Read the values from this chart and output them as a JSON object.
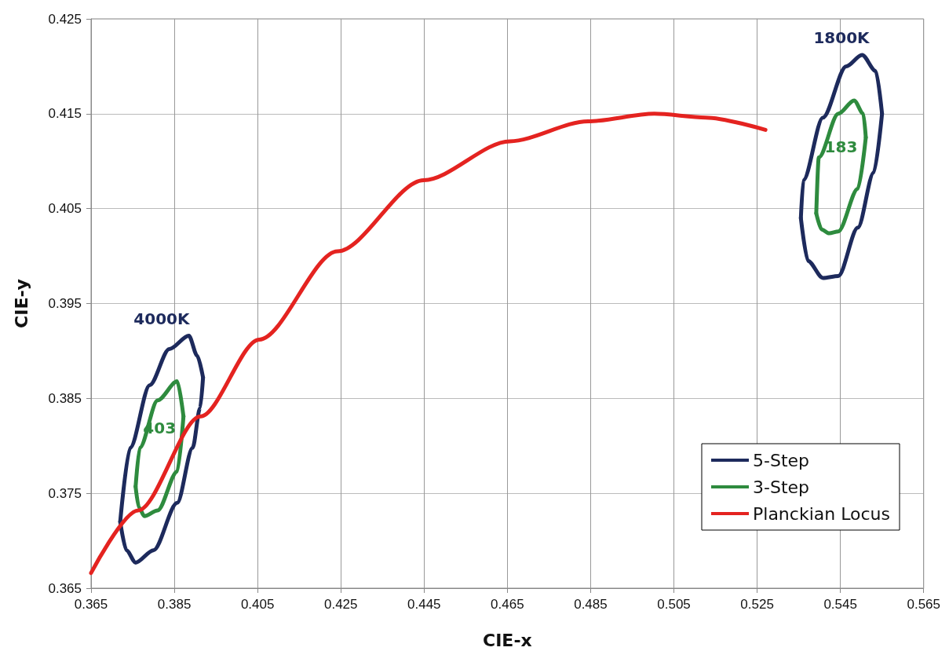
{
  "chart_data": {
    "type": "line",
    "xlabel": "CIE-x",
    "ylabel": "CIE-y",
    "xlim": [
      0.365,
      0.565
    ],
    "xticks": [
      0.365,
      0.385,
      0.405,
      0.425,
      0.445,
      0.465,
      0.485,
      0.505,
      0.525,
      0.545,
      0.565
    ],
    "ylim": [
      0.365,
      0.425
    ],
    "yticks": [
      0.365,
      0.375,
      0.385,
      0.395,
      0.405,
      0.415,
      0.425
    ],
    "grid": true,
    "legend": "bottom right",
    "marker": "none",
    "line_style": "solid",
    "series": [
      {
        "name": "5-Step",
        "color": "#1d2a5c",
        "x": [
          0.372,
          0.3744,
          0.3791,
          0.3838,
          0.3885,
          0.3905,
          0.3919
        ],
        "values": [
          0.372,
          0.3798,
          0.3864,
          0.3902,
          0.3916,
          0.3895,
          0.3872
        ]
      },
      {
        "color": "#1d2a5c",
        "x": [
          0.372,
          0.3735,
          0.3757,
          0.38,
          0.3857,
          0.3894,
          0.3912,
          0.3919
        ],
        "values": [
          0.372,
          0.369,
          0.3677,
          0.369,
          0.374,
          0.3798,
          0.384,
          0.3872
        ]
      },
      {
        "name": "3-Step",
        "color": "#2e8b3e",
        "x": [
          0.3757,
          0.3767,
          0.381,
          0.3857,
          0.3872
        ],
        "values": [
          0.3757,
          0.3798,
          0.3848,
          0.3868,
          0.3831
        ]
      },
      {
        "color": "#2e8b3e",
        "x": [
          0.3757,
          0.3765,
          0.3778,
          0.381,
          0.3857,
          0.3872
        ],
        "values": [
          0.3757,
          0.3735,
          0.3726,
          0.3732,
          0.3773,
          0.3831
        ]
      },
      {
        "color": "#1d2a5c",
        "x": [
          0.5355,
          0.5361,
          0.5408,
          0.5464,
          0.5502,
          0.5535,
          0.555
        ],
        "values": [
          0.404,
          0.408,
          0.4146,
          0.42,
          0.4212,
          0.4195,
          0.415
        ]
      },
      {
        "color": "#1d2a5c",
        "x": [
          0.5355,
          0.5372,
          0.5408,
          0.5445,
          0.5492,
          0.553,
          0.555
        ],
        "values": [
          0.404,
          0.3995,
          0.3977,
          0.3979,
          0.403,
          0.4088,
          0.415
        ]
      },
      {
        "color": "#2e8b3e",
        "x": [
          0.5392,
          0.5398,
          0.5445,
          0.5483,
          0.5505,
          0.5511
        ],
        "values": [
          0.4045,
          0.4104,
          0.415,
          0.4164,
          0.415,
          0.4125
        ]
      },
      {
        "color": "#2e8b3e",
        "x": [
          0.5392,
          0.5405,
          0.5423,
          0.5445,
          0.5492,
          0.5511
        ],
        "values": [
          0.4045,
          0.4028,
          0.4024,
          0.4026,
          0.4071,
          0.4125
        ]
      },
      {
        "name": "Planckian Locus",
        "color": "#e42320",
        "x": [
          0.365,
          0.3763,
          0.3913,
          0.4054,
          0.4242,
          0.4449,
          0.4656,
          0.4844,
          0.5003,
          0.5126,
          0.527
        ],
        "values": [
          0.3666,
          0.3732,
          0.3831,
          0.3912,
          0.4005,
          0.408,
          0.4121,
          0.4142,
          0.415,
          0.4146,
          0.4133
        ]
      }
    ],
    "annotations": [
      "4000K",
      "403",
      "1800K",
      "183"
    ]
  }
}
